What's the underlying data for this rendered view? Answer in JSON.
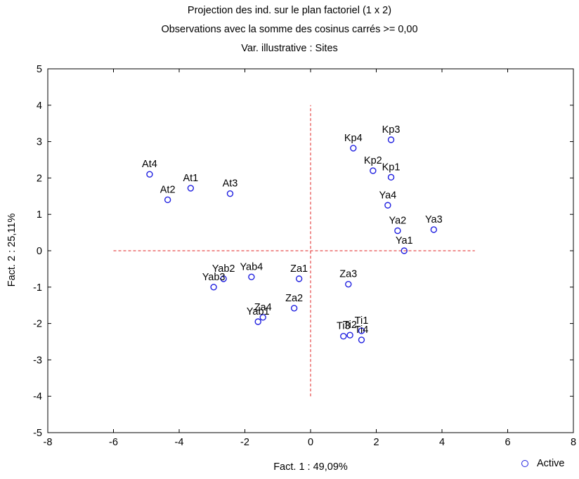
{
  "title_lines": [
    "Projection des ind. sur le plan factoriel (1 x   2)",
    "Observations avec la somme des cosinus carrés >=  0,00",
    "Var. illustrative :  Sites"
  ],
  "chart_data": {
    "type": "scatter",
    "xlabel": "Fact. 1 : 49,09%",
    "ylabel": "Fact. 2 : 25,11%",
    "xlim": [
      -8,
      8
    ],
    "ylim": [
      -5,
      5
    ],
    "xticks": [
      "-8",
      "-6",
      "-4",
      "-2",
      "0",
      "2",
      "4",
      "6",
      "8"
    ],
    "yticks": [
      "-5",
      "-4",
      "-3",
      "-2",
      "-1",
      "0",
      "1",
      "2",
      "3",
      "4",
      "5"
    ],
    "legend": {
      "label": "Active",
      "position": "bottom-right"
    },
    "series": [
      {
        "name": "Active",
        "color": "#1f1fe0",
        "marker": "open-circle",
        "points": [
          {
            "label": "At4",
            "x": -4.9,
            "y": 2.1
          },
          {
            "label": "At2",
            "x": -4.35,
            "y": 1.4
          },
          {
            "label": "At1",
            "x": -3.65,
            "y": 1.72
          },
          {
            "label": "At3",
            "x": -2.45,
            "y": 1.57
          },
          {
            "label": "Kp4",
            "x": 1.3,
            "y": 2.82
          },
          {
            "label": "Kp3",
            "x": 2.45,
            "y": 3.05
          },
          {
            "label": "Kp2",
            "x": 1.9,
            "y": 2.2
          },
          {
            "label": "Kp1",
            "x": 2.45,
            "y": 2.02
          },
          {
            "label": "Ya4",
            "x": 2.35,
            "y": 1.25
          },
          {
            "label": "Ya2",
            "x": 2.65,
            "y": 0.55
          },
          {
            "label": "Ya3",
            "x": 3.75,
            "y": 0.58
          },
          {
            "label": "Ya1",
            "x": 2.85,
            "y": 0.0
          },
          {
            "label": "Yab2",
            "x": -2.65,
            "y": -0.77
          },
          {
            "label": "Yab4",
            "x": -1.8,
            "y": -0.72
          },
          {
            "label": "Yab3",
            "x": -2.95,
            "y": -1.0
          },
          {
            "label": "Za1",
            "x": -0.35,
            "y": -0.77
          },
          {
            "label": "Za3",
            "x": 1.15,
            "y": -0.92
          },
          {
            "label": "Za2",
            "x": -0.5,
            "y": -1.58
          },
          {
            "label": "Za4",
            "x": -1.45,
            "y": -1.83
          },
          {
            "label": "Yab1",
            "x": -1.6,
            "y": -1.95
          },
          {
            "label": "Ti1",
            "x": 1.55,
            "y": -2.2
          },
          {
            "label": "Ti2",
            "x": 1.2,
            "y": -2.32
          },
          {
            "label": "Ti3",
            "x": 1.0,
            "y": -2.35
          },
          {
            "label": "Ti4",
            "x": 1.55,
            "y": -2.45
          }
        ]
      }
    ],
    "reference_lines": {
      "color": "#e02020",
      "style": "dashed",
      "horizontal": {
        "y": 0,
        "x_from": -6,
        "x_to": 5
      },
      "vertical": {
        "x": 0,
        "y_from": -4,
        "y_to": 4
      }
    }
  }
}
